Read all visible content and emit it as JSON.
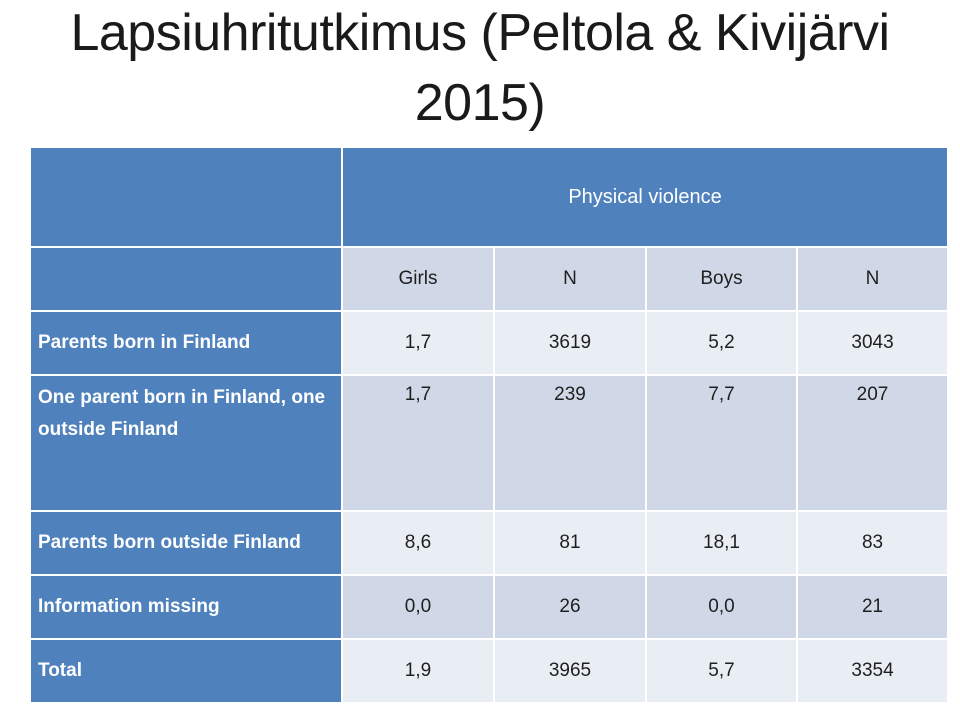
{
  "title": {
    "line1": "Lapsiuhritutkimus (Peltola & Kivijärvi",
    "line2": "2015)"
  },
  "table": {
    "group_header": "Physical violence",
    "columns": [
      "Girls",
      "N",
      "Boys",
      "N"
    ],
    "rows": [
      {
        "label": "Parents born in Finland",
        "values": [
          "1,7",
          "3619",
          "5,2",
          "3043"
        ]
      },
      {
        "label": "One parent born in Finland, one outside Finland",
        "values": [
          "1,7",
          "239",
          "7,7",
          "207"
        ]
      },
      {
        "label": "Parents born outside Finland",
        "values": [
          "8,6",
          "81",
          "18,1",
          "83"
        ]
      },
      {
        "label": "Information missing",
        "values": [
          "0,0",
          "26",
          "0,0",
          "21"
        ]
      },
      {
        "label": "Total",
        "values": [
          "1,9",
          "3965",
          "5,7",
          "3354"
        ]
      }
    ]
  },
  "colors": {
    "header_blue": "#4f81bd",
    "row_dark": "#d0d8e8",
    "row_light": "#e9edf4"
  }
}
